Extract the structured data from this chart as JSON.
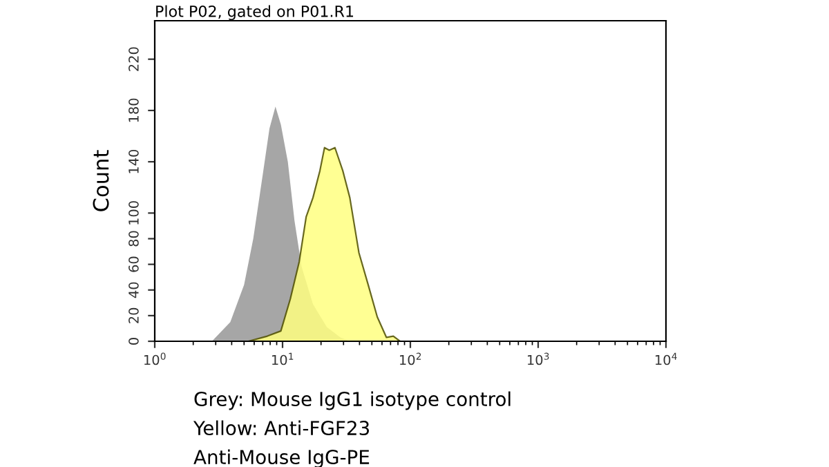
{
  "chart_data": {
    "type": "area",
    "title": "Plot P02, gated on P01.R1",
    "ylabel": "Count",
    "log": "x",
    "xlim": [
      1,
      10000
    ],
    "xticks": [
      {
        "value": 1,
        "label": "10$^{0}$"
      },
      {
        "value": 10,
        "label": "10$^{1}$"
      },
      {
        "value": 100,
        "label": "10$^{2}$"
      },
      {
        "value": 1000,
        "label": "10$^{3}$"
      },
      {
        "value": 10000,
        "label": "10$^{4}$"
      }
    ],
    "ylim": [
      0,
      250
    ],
    "yticks": [
      0,
      20,
      40,
      60,
      80,
      100,
      140,
      180,
      220
    ],
    "grid": false,
    "legend": false,
    "series": [
      {
        "color": "#a6a6a6",
        "x": [
          2.8,
          3.9,
          5.0,
          5.9,
          7.0,
          7.9,
          8.8,
          9.7,
          11.0,
          12.4,
          14.1,
          17.3,
          22.2,
          28.4,
          33.6
        ],
        "values": [
          0,
          15,
          44,
          80,
          130,
          166,
          183,
          169,
          140,
          94,
          58,
          29,
          11,
          3,
          0
        ]
      },
      {
        "color": "#ffff80",
        "x": [
          5.4,
          7.6,
          9.7,
          11.5,
          13.5,
          15.3,
          17.3,
          19.6,
          21.3,
          23.2,
          25.7,
          29.6,
          33.6,
          39.6,
          46.8,
          55.1,
          65,
          73.6,
          83
        ],
        "values": [
          0,
          4,
          8,
          33,
          62,
          97,
          112,
          133,
          151,
          149,
          151,
          133,
          112,
          69,
          44,
          19,
          3,
          4,
          0
        ]
      }
    ],
    "annotations": [
      "Grey: Mouse IgG1 isotype control",
      "Yellow: Anti-FGF23",
      "Anti-Mouse IgG-PE"
    ]
  }
}
